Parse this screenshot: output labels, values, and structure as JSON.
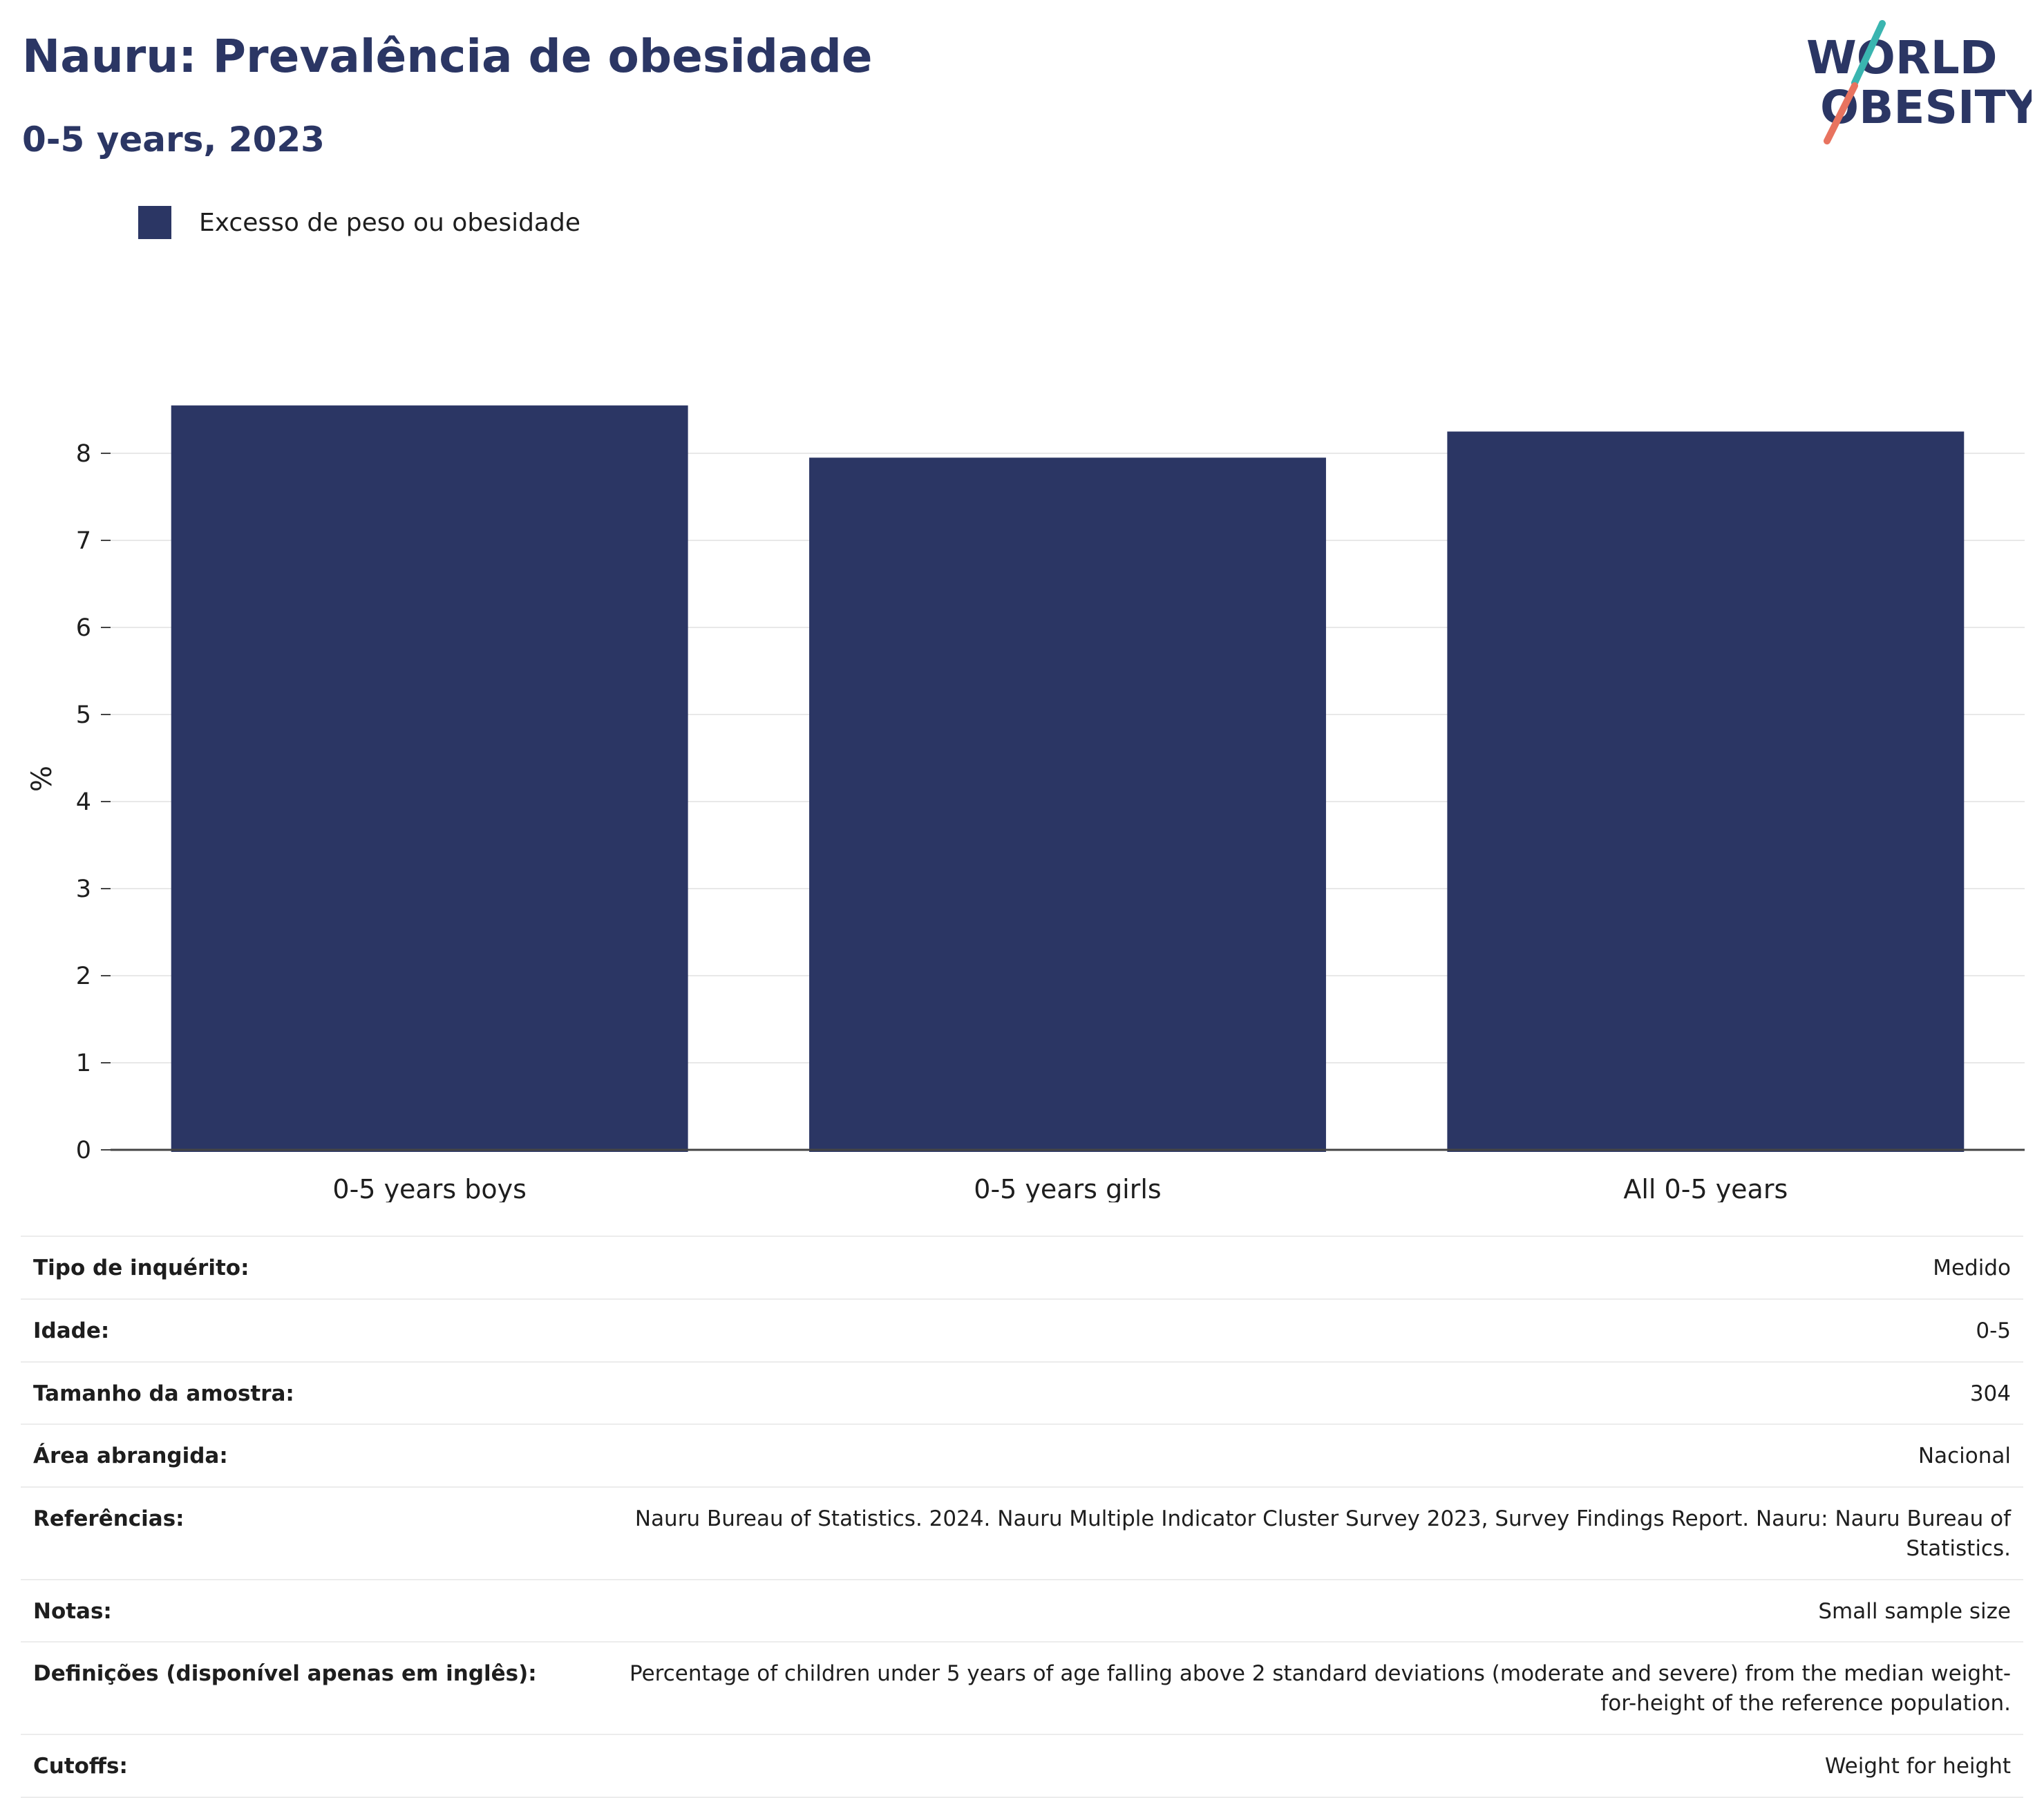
{
  "header": {
    "title": "Nauru: Prevalência de obesidade",
    "subtitle": "0-5 years, 2023"
  },
  "logo": {
    "line1": "WORLD",
    "line2": "OBESITY",
    "accent_teal": "#3ab5b0",
    "accent_coral": "#e8735f"
  },
  "colors": {
    "bar": "#2b3664",
    "title": "#2b3664",
    "grid": "#e8e8e8",
    "axis": "#444444"
  },
  "chart_data": {
    "type": "bar",
    "title": "Nauru: Prevalência de obesidade",
    "subtitle": "0-5 years, 2023",
    "categories": [
      "0-5 years boys",
      "0-5 years girls",
      "All 0-5 years"
    ],
    "series": [
      {
        "name": "Excesso de peso ou obesidade",
        "values": [
          8.55,
          7.95,
          8.25
        ]
      }
    ],
    "xlabel": "",
    "ylabel": "%",
    "ylim": [
      0,
      9.0
    ],
    "yticks": [
      0,
      1,
      2,
      3,
      4,
      5,
      6,
      7,
      8
    ],
    "grid": true,
    "legend_position": "top-left"
  },
  "info": [
    {
      "key": "Tipo de inquérito:",
      "value": "Medido"
    },
    {
      "key": "Idade:",
      "value": "0-5"
    },
    {
      "key": "Tamanho da amostra:",
      "value": "304"
    },
    {
      "key": "Área abrangida:",
      "value": "Nacional"
    },
    {
      "key": "Referências:",
      "value": "Nauru Bureau of Statistics. 2024. Nauru Multiple Indicator Cluster Survey 2023, Survey Findings Report. Nauru: Nauru Bureau of Statistics."
    },
    {
      "key": "Notas:",
      "value": "Small sample size"
    },
    {
      "key": "Definições (disponível apenas em inglês):",
      "value": "Percentage of children under 5 years of age falling above 2 standard deviations (moderate and severe) from the median weight-for-height of the reference population."
    },
    {
      "key": "Cutoffs:",
      "value": "Weight for height"
    }
  ]
}
